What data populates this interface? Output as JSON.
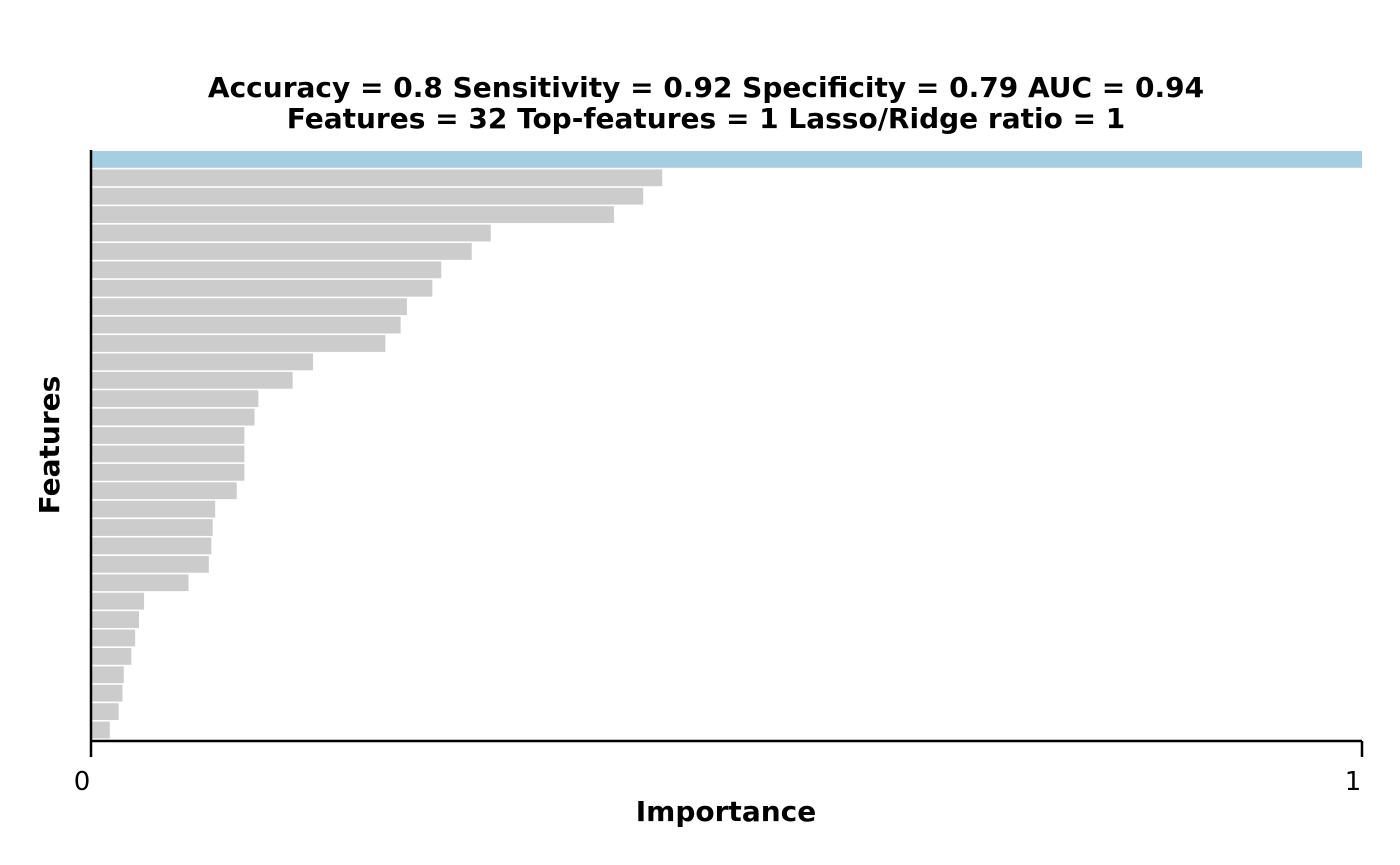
{
  "chart_data": {
    "type": "bar",
    "orientation": "horizontal",
    "title_lines": [
      "Accuracy = 0.8    Sensitivity = 0.92    Specificity = 0.79    AUC = 0.94",
      "Features = 32    Top-features = 1    Lasso/Ridge ratio = 1"
    ],
    "xlabel": "Importance",
    "ylabel": "Features",
    "xlim": [
      0,
      1
    ],
    "x_ticks": [
      "0",
      "1"
    ],
    "grid": false,
    "legend": "none",
    "top_features": 1,
    "colors": {
      "top": "#a6cee3",
      "other": "#cccccc"
    },
    "values": [
      1.0,
      0.449,
      0.434,
      0.411,
      0.314,
      0.299,
      0.275,
      0.268,
      0.248,
      0.243,
      0.231,
      0.174,
      0.158,
      0.131,
      0.128,
      0.12,
      0.12,
      0.12,
      0.114,
      0.097,
      0.095,
      0.094,
      0.092,
      0.076,
      0.041,
      0.037,
      0.034,
      0.031,
      0.025,
      0.024,
      0.021,
      0.014
    ]
  }
}
